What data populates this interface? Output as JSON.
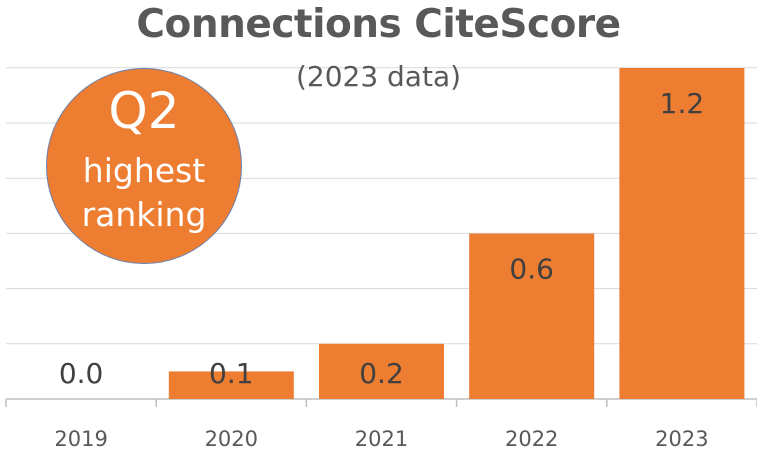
{
  "chart_data": {
    "type": "bar",
    "title": "Connections CiteScore",
    "subtitle": "(2023 data)",
    "categories": [
      "2019",
      "2020",
      "2021",
      "2022",
      "2023"
    ],
    "values": [
      0.0,
      0.1,
      0.2,
      0.6,
      1.2
    ],
    "data_labels": [
      "0.0",
      "0.1",
      "0.2",
      "0.6",
      "1.2"
    ],
    "xlabel": "",
    "ylabel": "",
    "ylim": [
      0,
      1.2
    ],
    "grid": true,
    "legend": "none",
    "bar_color": "#ed7d31",
    "annotation": {
      "quartile": "Q2",
      "line1": "highest",
      "line2": "ranking",
      "fill_color": "#ed7d31"
    }
  }
}
